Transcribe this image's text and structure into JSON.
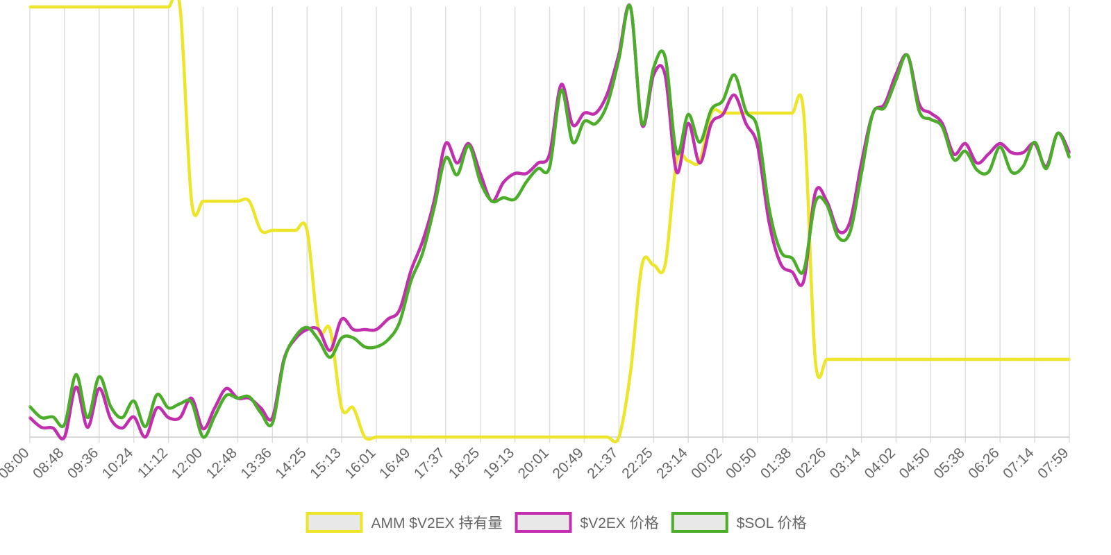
{
  "chart_data": {
    "type": "line",
    "categories": [
      "08:00",
      null,
      null,
      "08:48",
      null,
      null,
      "09:36",
      null,
      null,
      "10:24",
      null,
      null,
      "11:12",
      null,
      null,
      "12:00",
      null,
      null,
      "12:48",
      null,
      null,
      "13:36",
      null,
      null,
      "14:25",
      null,
      null,
      "15:13",
      null,
      null,
      "16:01",
      null,
      null,
      "16:49",
      null,
      null,
      "17:37",
      null,
      null,
      "18:25",
      null,
      null,
      "19:13",
      null,
      null,
      "20:01",
      null,
      null,
      "20:49",
      null,
      null,
      "21:37",
      null,
      null,
      "22:25",
      null,
      null,
      "23:14",
      null,
      null,
      "00:02",
      null,
      null,
      "00:50",
      null,
      null,
      "01:38",
      null,
      null,
      "02:26",
      null,
      null,
      "03:14",
      null,
      null,
      "04:02",
      null,
      null,
      "04:50",
      null,
      null,
      "05:38",
      null,
      null,
      "06:26",
      null,
      null,
      "07:14",
      null,
      null,
      "07:59"
    ],
    "series": [
      {
        "name": "AMM $V2EX 持有量",
        "color": "#ede52a",
        "values": [
          620,
          620,
          620,
          620,
          620,
          620,
          620,
          620,
          620,
          620,
          620,
          620,
          620,
          620,
          340,
          340,
          340,
          340,
          340,
          340,
          298,
          298,
          298,
          298,
          298,
          155,
          155,
          42,
          42,
          0,
          0,
          0,
          0,
          0,
          0,
          0,
          0,
          0,
          0,
          0,
          0,
          0,
          0,
          0,
          0,
          0,
          0,
          0,
          0,
          0,
          0,
          0,
          93,
          248,
          248,
          248,
          398,
          398,
          398,
          467,
          467,
          467,
          467,
          467,
          467,
          467,
          467,
          467,
          112,
          112,
          112,
          112,
          112,
          112,
          112,
          112,
          112,
          112,
          112,
          112,
          112,
          112,
          112,
          112,
          112,
          112,
          112,
          112,
          112,
          112,
          112
        ]
      },
      {
        "name": "$V2EX 价格",
        "color": "#c12fae",
        "values": [
          28,
          14,
          13,
          0,
          72,
          14,
          70,
          26,
          13,
          29,
          0,
          42,
          28,
          28,
          56,
          12,
          42,
          70,
          56,
          56,
          42,
          28,
          112,
          142,
          155,
          155,
          125,
          170,
          155,
          155,
          155,
          170,
          183,
          240,
          282,
          340,
          423,
          395,
          423,
          380,
          340,
          367,
          380,
          380,
          395,
          408,
          508,
          450,
          467,
          467,
          495,
          552,
          620,
          450,
          522,
          522,
          382,
          452,
          395,
          452,
          465,
          493,
          452,
          420,
          310,
          250,
          238,
          225,
          352,
          340,
          297,
          310,
          395,
          467,
          480,
          523,
          550,
          480,
          467,
          452,
          408,
          423,
          395,
          408,
          423,
          410,
          410,
          423,
          390,
          438,
          410
        ]
      },
      {
        "name": "$SOL 价格",
        "color": "#4cad2b",
        "values": [
          44,
          28,
          29,
          18,
          90,
          28,
          87,
          44,
          28,
          52,
          15,
          61,
          42,
          48,
          50,
          0,
          30,
          60,
          56,
          58,
          35,
          20,
          110,
          145,
          158,
          140,
          115,
          143,
          143,
          130,
          130,
          140,
          165,
          225,
          265,
          330,
          402,
          378,
          420,
          368,
          340,
          345,
          343,
          368,
          387,
          389,
          500,
          425,
          455,
          452,
          480,
          545,
          620,
          452,
          532,
          548,
          410,
          465,
          425,
          472,
          485,
          522,
          470,
          445,
          330,
          268,
          258,
          240,
          338,
          335,
          288,
          295,
          380,
          467,
          475,
          515,
          550,
          470,
          458,
          447,
          400,
          412,
          385,
          382,
          418,
          382,
          390,
          425,
          387,
          438,
          403
        ]
      }
    ],
    "ylim": [
      0,
      620
    ],
    "grid": true,
    "legend": "bottom"
  }
}
